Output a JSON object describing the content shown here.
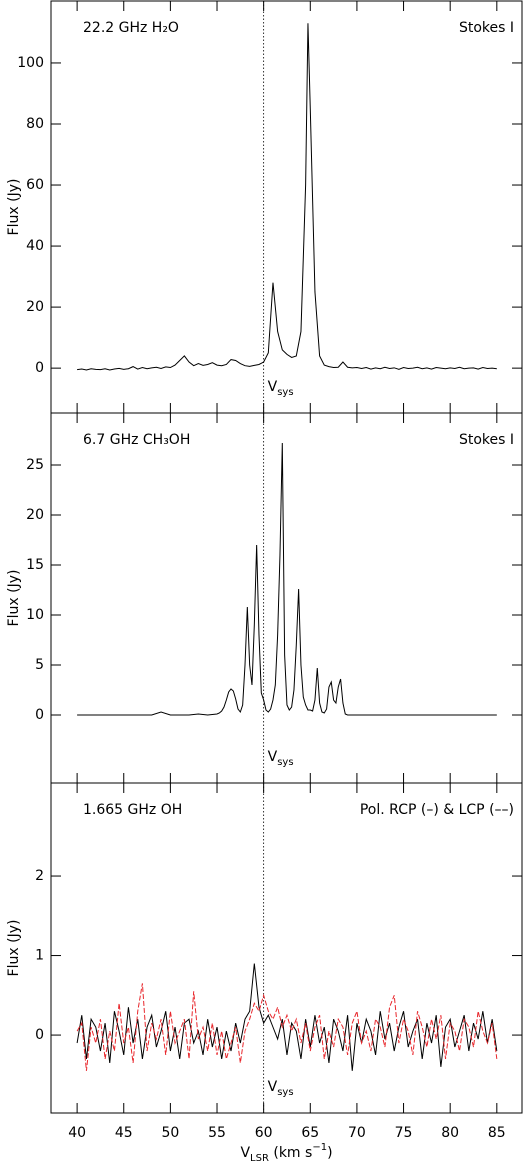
{
  "chart_data": [
    {
      "type": "line",
      "title_left": "22.2 GHz H₂O",
      "title_right": "Stokes I",
      "ylabel": "Flux (Jy)",
      "vline": 60,
      "vline_label": [
        {
          "text": "V"
        },
        {
          "text": "sys",
          "shift": "sub"
        }
      ],
      "xlim": [
        37.2,
        87.7
      ],
      "xticks": [
        40,
        45,
        50,
        55,
        60,
        65,
        70,
        75,
        80,
        85
      ],
      "ylim": [
        -14.7,
        120.3
      ],
      "yticks": [
        0,
        20,
        40,
        60,
        80,
        100
      ],
      "x": [
        40,
        40.5,
        41,
        41.5,
        42,
        42.5,
        43,
        43.5,
        44,
        44.5,
        45,
        45.5,
        46,
        46.5,
        47,
        47.5,
        48,
        48.5,
        49,
        49.5,
        50,
        50.5,
        51,
        51.5,
        52,
        52.5,
        53,
        53.5,
        54,
        54.5,
        55,
        55.5,
        56,
        56.5,
        57,
        57.5,
        58,
        58.5,
        59,
        59.5,
        60,
        60.5,
        61,
        61.5,
        62,
        62.5,
        63,
        63.5,
        64,
        64.5,
        64.75,
        65,
        65.5,
        66,
        66.5,
        67,
        67.5,
        68,
        68.5,
        69,
        69.5,
        70,
        70.5,
        71,
        71.5,
        72,
        72.5,
        73,
        73.5,
        74,
        74.5,
        75,
        75.5,
        76,
        76.5,
        77,
        77.5,
        78,
        78.5,
        79,
        79.5,
        80,
        80.5,
        81,
        81.5,
        82,
        82.5,
        83,
        83.5,
        84,
        84.5,
        85
      ],
      "series": [
        {
          "color": "#000000",
          "values": [
            -0.5,
            -0.3,
            -0.6,
            -0.2,
            -0.4,
            -0.5,
            -0.2,
            -0.6,
            -0.3,
            -0.1,
            -0.4,
            -0.2,
            0.5,
            -0.3,
            0.2,
            -0.2,
            0.1,
            0.3,
            -0.1,
            0.4,
            0.2,
            1.0,
            2.5,
            4.0,
            2.0,
            0.8,
            1.5,
            0.9,
            1.2,
            1.8,
            1.0,
            0.8,
            1.2,
            2.8,
            2.5,
            1.5,
            0.8,
            0.6,
            0.9,
            1.2,
            2.0,
            5,
            28,
            12,
            6,
            4.5,
            3.5,
            4,
            12,
            60,
            113,
            85,
            25,
            4,
            1,
            0.5,
            0.2,
            0.3,
            2.0,
            0.3,
            0.1,
            0.2,
            -0.1,
            0.2,
            -0.3,
            0.1,
            -0.2,
            0.3,
            -0.1,
            0.1,
            -0.4,
            0.2,
            -0.1,
            0.0,
            0.3,
            -0.2,
            0.1,
            -0.3,
            0.2,
            0.0,
            -0.2,
            0.1,
            -0.1,
            0.3,
            -0.2,
            0.0,
            0.1,
            -0.3,
            0.2,
            -0.1,
            0.0,
            -0.2
          ]
        }
      ]
    },
    {
      "type": "line",
      "title_left": "6.7 GHz CH₃OH",
      "title_right": "Stokes I",
      "ylabel": "Flux (Jy)",
      "vline": 60,
      "vline_label": [
        {
          "text": "V"
        },
        {
          "text": "sys",
          "shift": "sub"
        }
      ],
      "xlim": [
        37.2,
        87.7
      ],
      "xticks": [
        40,
        45,
        50,
        55,
        60,
        65,
        70,
        75,
        80,
        85
      ],
      "ylim": [
        -6.8,
        30.2
      ],
      "yticks": [
        0,
        5,
        10,
        15,
        20,
        25
      ],
      "x": [
        40,
        41,
        42,
        43,
        44,
        45,
        46,
        47,
        48,
        49,
        50,
        51,
        52,
        53,
        54,
        55,
        55.25,
        55.5,
        55.75,
        56,
        56.25,
        56.5,
        56.75,
        57,
        57.25,
        57.5,
        57.75,
        58,
        58.25,
        58.5,
        58.75,
        59,
        59.25,
        59.5,
        59.75,
        60,
        60.25,
        60.5,
        60.75,
        61,
        61.25,
        61.5,
        61.75,
        62,
        62.25,
        62.5,
        62.75,
        63,
        63.25,
        63.5,
        63.75,
        64,
        64.25,
        64.5,
        64.75,
        65,
        65.25,
        65.5,
        65.75,
        66,
        66.25,
        66.5,
        66.75,
        67,
        67.25,
        67.5,
        67.75,
        68,
        68.25,
        68.5,
        68.75,
        69,
        69.25,
        69.5,
        69.75,
        70,
        71,
        72,
        73,
        74,
        75,
        76,
        77,
        78,
        79,
        80,
        81,
        82,
        83,
        84,
        85
      ],
      "series": [
        {
          "color": "#000000",
          "values": [
            0,
            0,
            0,
            0,
            0,
            0,
            0,
            0,
            0,
            0.3,
            0,
            0,
            0,
            0.1,
            0,
            0.1,
            0.2,
            0.4,
            0.8,
            1.5,
            2.3,
            2.6,
            2.4,
            1.6,
            0.6,
            0.3,
            1.0,
            5,
            10.8,
            5,
            3,
            9,
            17,
            8,
            2.2,
            1.5,
            0.5,
            0.3,
            0.6,
            1.5,
            3,
            8,
            16,
            27.2,
            6,
            1.0,
            0.5,
            0.8,
            2.5,
            7,
            12.6,
            5,
            1.8,
            1.0,
            0.5,
            0.5,
            0.4,
            1.5,
            4.7,
            1.2,
            0.3,
            0.2,
            0.6,
            2.8,
            3.3,
            1.5,
            1.2,
            2.8,
            3.6,
            1.2,
            0.1,
            0,
            0,
            0,
            0,
            0,
            0,
            0,
            0,
            0,
            0,
            0,
            0,
            0,
            0,
            0,
            0,
            0,
            0,
            0,
            0
          ]
        }
      ]
    },
    {
      "type": "line",
      "title_left": "1.665 GHz OH",
      "title_right": "Pol. RCP (–) & LCP (––)",
      "ylabel": "Flux (Jy)",
      "vline": 60,
      "vline_label": [
        {
          "text": "V"
        },
        {
          "text": "sys",
          "shift": "sub"
        }
      ],
      "xlabel": [
        {
          "text": "V"
        },
        {
          "text": "LSR",
          "shift": "sub"
        },
        {
          "text": " (km s"
        },
        {
          "text": "−1",
          "shift": "super"
        },
        {
          "text": ")"
        }
      ],
      "xlim": [
        37.2,
        87.7
      ],
      "xticks": [
        40,
        45,
        50,
        55,
        60,
        65,
        70,
        75,
        80,
        85
      ],
      "ylim": [
        -0.98,
        3.17
      ],
      "yticks": [
        0,
        1,
        2
      ],
      "x": [
        40,
        40.5,
        41,
        41.5,
        42,
        42.5,
        43,
        43.5,
        44,
        44.5,
        45,
        45.5,
        46,
        46.5,
        47,
        47.5,
        48,
        48.5,
        49,
        49.5,
        50,
        50.5,
        51,
        51.5,
        52,
        52.5,
        53,
        53.5,
        54,
        54.5,
        55,
        55.5,
        56,
        56.5,
        57,
        57.5,
        58,
        58.5,
        59,
        59.5,
        60,
        60.5,
        61,
        61.5,
        62,
        62.5,
        63,
        63.5,
        64,
        64.5,
        65,
        65.5,
        66,
        66.5,
        67,
        67.5,
        68,
        68.5,
        69,
        69.5,
        70,
        70.5,
        71,
        71.5,
        72,
        72.5,
        73,
        73.5,
        74,
        74.5,
        75,
        75.5,
        76,
        76.5,
        77,
        77.5,
        78,
        78.5,
        79,
        79.5,
        80,
        80.5,
        81,
        81.5,
        82,
        82.5,
        83,
        83.5,
        84,
        84.5,
        85
      ],
      "series": [
        {
          "color": "#000000",
          "dash": false,
          "values": [
            -0.1,
            0.25,
            -0.3,
            0.2,
            0.1,
            -0.2,
            0.15,
            -0.35,
            0.3,
            0.05,
            -0.25,
            0.35,
            -0.1,
            0.2,
            -0.3,
            0.1,
            0.25,
            -0.15,
            0.05,
            0.3,
            -0.2,
            0.1,
            -0.3,
            0.15,
            0.2,
            -0.1,
            0.05,
            -0.25,
            0.2,
            -0.15,
            0.1,
            -0.3,
            0.05,
            -0.2,
            0.15,
            -0.1,
            0.2,
            0.3,
            0.9,
            0.35,
            0.15,
            0.25,
            0.1,
            -0.05,
            0.2,
            -0.25,
            0.15,
            0.05,
            -0.3,
            0.2,
            -0.15,
            0.25,
            -0.1,
            0.1,
            -0.35,
            0.2,
            0.05,
            -0.2,
            0.25,
            -0.45,
            0.15,
            -0.1,
            0.2,
            0.05,
            -0.25,
            0.3,
            -0.05,
            0.15,
            -0.2,
            0.1,
            0.3,
            -0.15,
            0.05,
            0.2,
            -0.3,
            0.15,
            -0.1,
            0.25,
            -0.4,
            0.1,
            0.2,
            -0.15,
            0.05,
            0.25,
            -0.2,
            0.15,
            -0.05,
            0.3,
            -0.1,
            0.2,
            -0.2
          ]
        },
        {
          "color": "#e8262b",
          "dash": true,
          "values": [
            0.05,
            0.15,
            -0.45,
            0.1,
            -0.1,
            0.2,
            -0.3,
            0.05,
            -0.2,
            0.4,
            -0.1,
            0.1,
            -0.35,
            0.3,
            0.65,
            -0.2,
            0.15,
            -0.05,
            0.2,
            -0.25,
            0.3,
            -0.1,
            0.05,
            0.2,
            -0.3,
            0.55,
            -0.05,
            0.1,
            -0.2,
            0.15,
            -0.25,
            0.05,
            -0.3,
            -0.1,
            0.1,
            -0.35,
            0.05,
            0.2,
            0.4,
            0.3,
            0.5,
            0.3,
            0.2,
            0.35,
            0.1,
            0.25,
            0.05,
            0.2,
            -0.1,
            0.15,
            -0.2,
            0.1,
            0.25,
            -0.3,
            0.05,
            -0.15,
            0.2,
            0.1,
            -0.25,
            0.15,
            0.3,
            -0.1,
            0.05,
            -0.2,
            0.2,
            0.1,
            -0.15,
            0.35,
            0.5,
            -0.1,
            0.2,
            0.05,
            -0.25,
            0.3,
            0.1,
            -0.15,
            0.2,
            -0.05,
            0.25,
            -0.3,
            0.15,
            0.05,
            -0.2,
            0.2,
            0.1,
            -0.15,
            0.3,
            0.05,
            -0.1,
            0.15,
            -0.3
          ]
        }
      ]
    }
  ]
}
